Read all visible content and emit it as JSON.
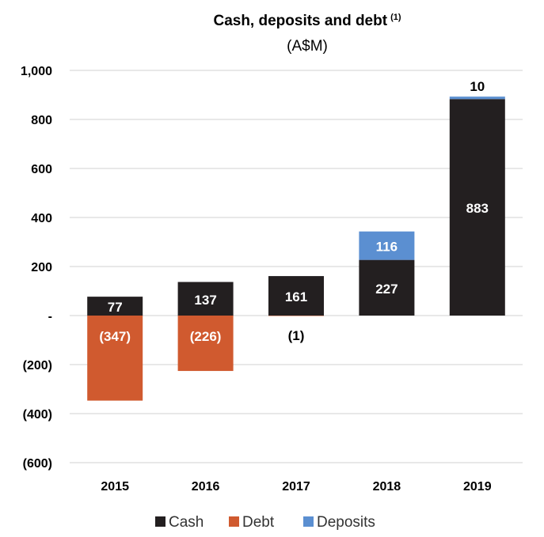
{
  "chart_data": {
    "type": "bar",
    "stacked": true,
    "title": "Cash, deposits and debt",
    "title_superscript": "(1)",
    "subtitle": "(A$M)",
    "categories": [
      "2015",
      "2016",
      "2017",
      "2018",
      "2019"
    ],
    "series": [
      {
        "name": "Cash",
        "color": "#231f20",
        "values": [
          77,
          137,
          161,
          227,
          883
        ],
        "labels": [
          "77",
          "137",
          "161",
          "227",
          "883"
        ],
        "label_color": "#ffffff"
      },
      {
        "name": "Debt",
        "color": "#d05a2f",
        "values": [
          -347,
          -226,
          -1,
          0,
          0
        ],
        "labels": [
          "(347)",
          "(226)",
          "(1)",
          "",
          ""
        ],
        "label_color": "#ffffff"
      },
      {
        "name": "Deposits",
        "color": "#5b8fd1",
        "values": [
          0,
          0,
          0,
          116,
          10
        ],
        "labels": [
          "",
          "",
          "",
          "116",
          "10"
        ],
        "label_color": "#ffffff"
      }
    ],
    "ylim": [
      -600,
      1000
    ],
    "yticks": [
      1000,
      800,
      600,
      400,
      200,
      0,
      -200,
      -400,
      -600
    ],
    "ytick_labels": [
      "1,000",
      "800",
      "600",
      "400",
      "200",
      "-",
      "(200)",
      "(400)",
      "(600)"
    ],
    "grid": true,
    "legend_position": "bottom"
  }
}
